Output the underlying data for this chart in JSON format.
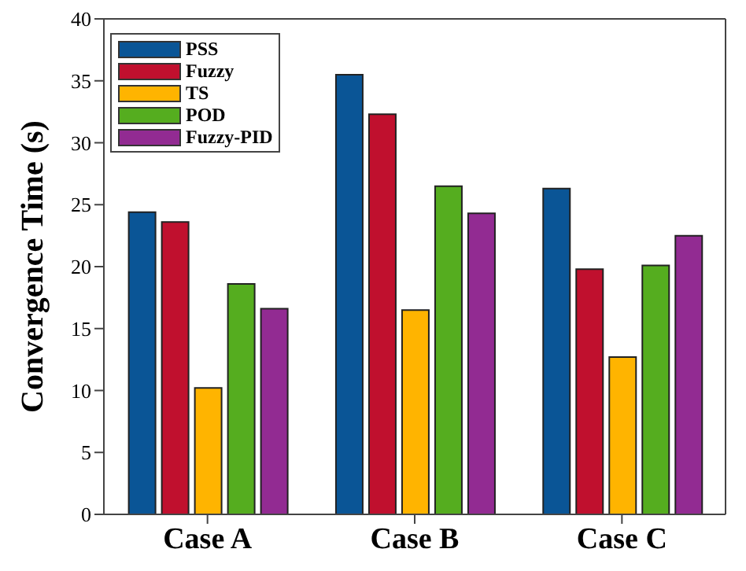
{
  "chart_data": {
    "type": "bar",
    "ylabel": "Convergence Time (s)",
    "categories": [
      "Case A",
      "Case B",
      "Case C"
    ],
    "series": [
      {
        "name": "PSS",
        "color": "#0a5596",
        "values": [
          24.4,
          35.5,
          26.3
        ]
      },
      {
        "name": "Fuzzy",
        "color": "#c0102e",
        "values": [
          23.6,
          32.3,
          19.8
        ]
      },
      {
        "name": "TS",
        "color": "#ffb400",
        "values": [
          10.2,
          16.5,
          12.7
        ]
      },
      {
        "name": "POD",
        "color": "#55ad1f",
        "values": [
          18.6,
          26.5,
          20.1
        ]
      },
      {
        "name": "Fuzzy-PID",
        "color": "#922b92",
        "values": [
          16.6,
          24.3,
          22.5
        ]
      }
    ],
    "ylim": [
      0,
      40
    ],
    "yticks": [
      0,
      5,
      10,
      15,
      20,
      25,
      30,
      35,
      40
    ],
    "grid": false,
    "legend": "top left"
  }
}
